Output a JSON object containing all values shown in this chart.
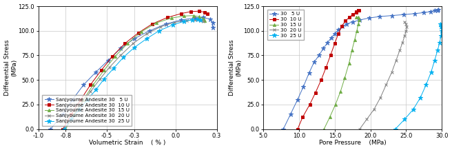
{
  "left": {
    "title": "Volumetric Strain    ( % )",
    "ylabel_line1": "Differential Stress",
    "ylabel_line2": "(MPa)",
    "xlim": [
      -1.0,
      0.3
    ],
    "ylim": [
      0.0,
      125.0
    ],
    "xticks": [
      -1.0,
      -0.8,
      -0.5,
      -0.3,
      0.0,
      0.3
    ],
    "yticks": [
      0.0,
      25.0,
      50.0,
      75.0,
      100.0,
      125.0
    ],
    "series": [
      {
        "label": "Sanjyoume Andesite 30   5 U",
        "color": "#4472C4",
        "marker": "*",
        "x": [
          -0.91,
          -0.82,
          -0.75,
          -0.67,
          -0.58,
          -0.49,
          -0.4,
          -0.3,
          -0.19,
          -0.07,
          0.04,
          0.14,
          0.2,
          0.25,
          0.27,
          0.27
        ],
        "y": [
          0.0,
          15.0,
          30.0,
          45.0,
          58.0,
          70.0,
          82.0,
          92.0,
          100.0,
          107.0,
          111.0,
          113.0,
          113.5,
          112.0,
          108.0,
          103.0
        ]
      },
      {
        "label": "Sanjyoume Andesite 30  10 U",
        "color": "#C00000",
        "marker": "s",
        "x": [
          -0.82,
          -0.76,
          -0.69,
          -0.62,
          -0.54,
          -0.46,
          -0.37,
          -0.27,
          -0.17,
          -0.06,
          0.04,
          0.11,
          0.17,
          0.21,
          0.23
        ],
        "y": [
          0.0,
          15.0,
          30.0,
          45.0,
          60.0,
          74.0,
          87.0,
          98.0,
          107.0,
          113.5,
          117.5,
          119.5,
          120.0,
          119.0,
          117.0
        ]
      },
      {
        "label": "Sanjyoume Andesite 30  15 U",
        "color": "#70AD47",
        "marker": "^",
        "x": [
          -0.8,
          -0.74,
          -0.67,
          -0.6,
          -0.52,
          -0.44,
          -0.35,
          -0.25,
          -0.14,
          -0.03,
          0.06,
          0.13,
          0.17,
          0.2,
          0.21
        ],
        "y": [
          0.0,
          15.0,
          30.0,
          45.0,
          60.0,
          74.0,
          87.0,
          99.0,
          108.0,
          113.0,
          115.0,
          115.5,
          114.5,
          112.5,
          110.0
        ]
      },
      {
        "label": "Sanjyoume Andesite 30  20 U",
        "color": "#808080",
        "marker": "x",
        "x": [
          -0.81,
          -0.75,
          -0.69,
          -0.62,
          -0.55,
          -0.48,
          -0.4,
          -0.31,
          -0.21,
          -0.11,
          -0.01,
          0.08,
          0.14,
          0.18,
          0.2
        ],
        "y": [
          0.0,
          12.0,
          25.0,
          38.0,
          51.0,
          63.0,
          75.0,
          87.0,
          97.0,
          104.0,
          108.5,
          110.5,
          111.0,
          110.5,
          109.5
        ]
      },
      {
        "label": "Sanjyoume Andesite 30  25 U",
        "color": "#00B0F0",
        "marker": "*",
        "x": [
          -0.81,
          -0.76,
          -0.7,
          -0.64,
          -0.58,
          -0.52,
          -0.45,
          -0.38,
          -0.3,
          -0.21,
          -0.12,
          -0.02,
          0.06,
          0.12,
          0.16,
          0.18
        ],
        "y": [
          0.0,
          10.0,
          20.0,
          30.0,
          40.0,
          51.0,
          62.0,
          73.0,
          83.0,
          92.0,
          100.0,
          106.0,
          109.5,
          111.0,
          111.5,
          111.0
        ]
      }
    ]
  },
  "right": {
    "title": "Pore Pressure    (MPa)",
    "ylabel_line1": "Differential Stress",
    "ylabel_line2": "(MPa)",
    "xlim": [
      5.0,
      30.0
    ],
    "ylim": [
      0.0,
      125.0
    ],
    "xticks": [
      5.0,
      10.0,
      15.0,
      20.0,
      25.0,
      30.0
    ],
    "yticks": [
      0.0,
      25.0,
      50.0,
      75.0,
      100.0,
      125.0
    ],
    "series": [
      {
        "label": "30   5 U",
        "color": "#4472C4",
        "marker": "*",
        "x": [
          7.8,
          8.8,
          9.8,
          10.6,
          11.4,
          12.1,
          12.8,
          13.4,
          14.0,
          14.5,
          15.0,
          15.5,
          16.1,
          16.7,
          17.5,
          18.5,
          19.8,
          21.3,
          23.0,
          24.7,
          26.2,
          27.5,
          28.4,
          29.0,
          29.4,
          29.5
        ],
        "y": [
          0.0,
          15.0,
          30.0,
          43.0,
          57.0,
          68.0,
          75.0,
          82.0,
          88.0,
          93.0,
          97.0,
          101.0,
          104.5,
          107.0,
          109.0,
          111.0,
          113.0,
          114.5,
          115.5,
          116.5,
          117.5,
          118.5,
          119.5,
          120.5,
          121.0,
          121.5
        ]
      },
      {
        "label": "30  10 U",
        "color": "#C00000",
        "marker": "s",
        "x": [
          9.8,
          10.5,
          11.5,
          12.3,
          13.1,
          13.8,
          14.4,
          15.0,
          15.5,
          16.0,
          16.5,
          17.0,
          17.5,
          18.0,
          18.3,
          18.4,
          18.3,
          18.0
        ],
        "y": [
          0.0,
          12.0,
          25.0,
          37.0,
          50.0,
          63.0,
          75.0,
          87.0,
          97.0,
          105.0,
          110.0,
          113.5,
          116.5,
          119.0,
          120.5,
          121.0,
          120.5,
          119.5
        ]
      },
      {
        "label": "30  15 U",
        "color": "#70AD47",
        "marker": "^",
        "x": [
          13.5,
          14.3,
          15.1,
          15.8,
          16.4,
          17.0,
          17.4,
          17.8,
          18.1,
          18.3,
          18.4,
          18.3,
          18.0
        ],
        "y": [
          0.0,
          12.0,
          25.0,
          38.0,
          52.0,
          67.0,
          80.0,
          91.0,
          100.0,
          107.0,
          111.0,
          113.5,
          114.0
        ]
      },
      {
        "label": "30  20 U",
        "color": "#808080",
        "marker": "x",
        "x": [
          18.5,
          19.5,
          20.5,
          21.4,
          22.2,
          23.0,
          23.6,
          24.1,
          24.5,
          24.8,
          25.0,
          25.1,
          25.0,
          24.8
        ],
        "y": [
          0.0,
          10.0,
          20.0,
          32.0,
          45.0,
          58.0,
          70.0,
          80.0,
          88.0,
          95.0,
          100.0,
          104.0,
          107.0,
          109.0
        ]
      },
      {
        "label": "30  25 U",
        "color": "#00B0F0",
        "marker": "*",
        "x": [
          23.5,
          24.8,
          26.0,
          27.0,
          27.8,
          28.5,
          29.0,
          29.4,
          29.7,
          29.9,
          30.0,
          29.9,
          29.8
        ],
        "y": [
          0.0,
          10.0,
          20.0,
          32.0,
          45.0,
          58.0,
          70.0,
          80.0,
          88.0,
          95.0,
          100.0,
          104.0,
          107.0
        ]
      }
    ]
  },
  "bg_color": "#ffffff",
  "grid_color": "#c8c8c8",
  "font_size": 6.5,
  "tick_font_size": 6,
  "legend_font_size": 5.2
}
